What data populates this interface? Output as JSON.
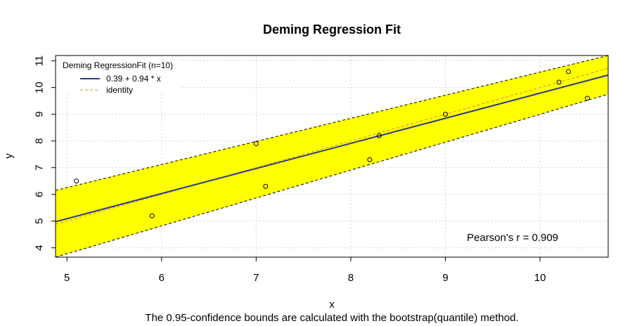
{
  "chart_data": {
    "type": "scatter",
    "title": "Deming Regression Fit",
    "xlabel": "x",
    "ylabel": "y",
    "xlim": [
      4.88,
      10.72
    ],
    "ylim": [
      3.65,
      11.2
    ],
    "x_ticks": [
      5,
      6,
      7,
      8,
      9,
      10
    ],
    "y_ticks": [
      4,
      5,
      6,
      7,
      8,
      9,
      10,
      11
    ],
    "grid": true,
    "points": [
      {
        "x": 5.1,
        "y": 6.5
      },
      {
        "x": 5.9,
        "y": 5.2
      },
      {
        "x": 7.0,
        "y": 7.9
      },
      {
        "x": 7.1,
        "y": 6.3
      },
      {
        "x": 8.2,
        "y": 7.3
      },
      {
        "x": 8.3,
        "y": 8.2
      },
      {
        "x": 9.0,
        "y": 9.0
      },
      {
        "x": 10.2,
        "y": 10.2
      },
      {
        "x": 10.3,
        "y": 10.6
      },
      {
        "x": 10.5,
        "y": 9.6
      }
    ],
    "fit": {
      "intercept": 0.39,
      "slope": 0.94,
      "label": "0.39 + 0.94 * x",
      "color": "#2b3a8a"
    },
    "identity": {
      "label": "identity",
      "color": "#d98d2b"
    },
    "confidence_band": {
      "color": "#ffff00",
      "lower": [
        [
          4.88,
          3.65
        ],
        [
          10.72,
          9.75
        ]
      ],
      "upper": [
        [
          4.88,
          6.15
        ],
        [
          10.72,
          11.2
        ]
      ]
    },
    "legend": {
      "title": "Deming RegressionFit (n=10)",
      "position": "top-left"
    },
    "correlation_text": "Pearson's r = 0.909",
    "footnote": "The 0.95-confidence bounds are calculated with the bootstrap(quantile) method."
  }
}
